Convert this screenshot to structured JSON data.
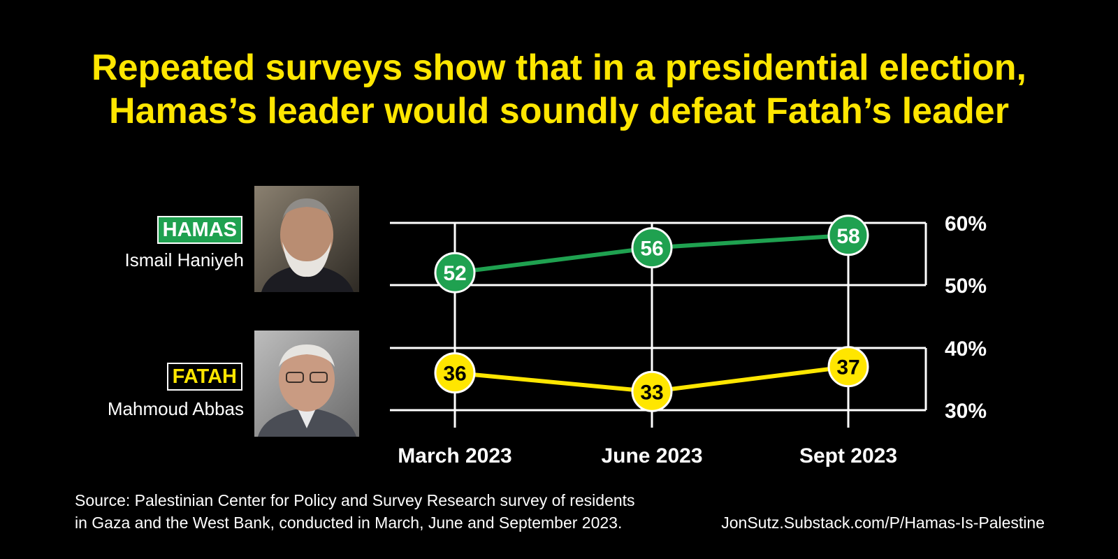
{
  "title": {
    "line1": "Repeated surveys show that in a presidential election,",
    "line2": "Hamas’s leader would soundly defeat Fatah’s leader"
  },
  "leaders": {
    "hamas": {
      "party": "HAMAS",
      "name": "Ismail Haniyeh",
      "color": "#1fa150"
    },
    "fatah": {
      "party": "FATAH",
      "name": "Mahmoud Abbas",
      "color": "#ffe600"
    }
  },
  "chart_data": {
    "type": "line",
    "categories": [
      "March 2023",
      "June 2023",
      "Sept 2023"
    ],
    "series": [
      {
        "name": "HAMAS",
        "values": [
          52,
          56,
          58
        ],
        "color": "#1fa150"
      },
      {
        "name": "FATAH",
        "values": [
          36,
          33,
          37
        ],
        "color": "#ffe600"
      }
    ],
    "y_ticks": [
      "60%",
      "50%",
      "40%",
      "30%"
    ],
    "y_tick_values": [
      60,
      50,
      40,
      30
    ],
    "y_segments": [
      [
        50,
        60
      ],
      [
        30,
        40
      ]
    ],
    "grid": true,
    "axis_position": "right"
  },
  "footer": {
    "source_line1": "Source: Palestinian Center for Policy and Survey Research survey of residents",
    "source_line2": "in Gaza and the West Bank, conducted in March, June and September 2023.",
    "credit": "JonSutz.Substack.com/P/Hamas-Is-Palestine"
  }
}
